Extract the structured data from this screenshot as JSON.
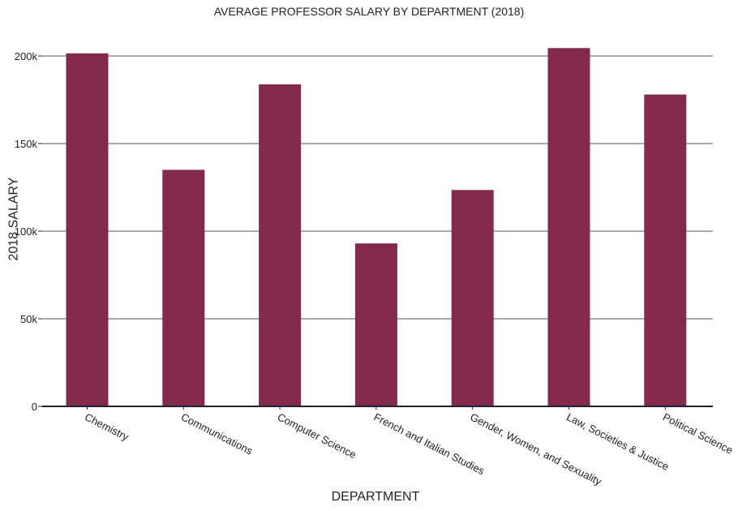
{
  "chart_data": {
    "type": "bar",
    "title": "AVERAGE PROFESSOR SALARY BY DEPARTMENT (2018)",
    "xlabel": "DEPARTMENT",
    "ylabel": "2018 SALARY",
    "categories": [
      "Chemistry",
      "Communications",
      "Computer Science",
      "French and Italian Studies",
      "Gender, Women, and Sexuality",
      "Law, Societies & Justice",
      "Political Science"
    ],
    "values": [
      201500,
      135000,
      183800,
      93000,
      123500,
      204500,
      178000
    ],
    "ylim": [
      0,
      200000
    ],
    "yticks": [
      0,
      50000,
      100000,
      150000,
      200000
    ],
    "ytick_labels": [
      "0",
      "50k",
      "100k",
      "150k",
      "200k"
    ],
    "grid": true,
    "legend": "none",
    "colors": {
      "bar": "#832a4c",
      "grid": "#555566",
      "axis": "#222233",
      "text": "#222222"
    }
  }
}
